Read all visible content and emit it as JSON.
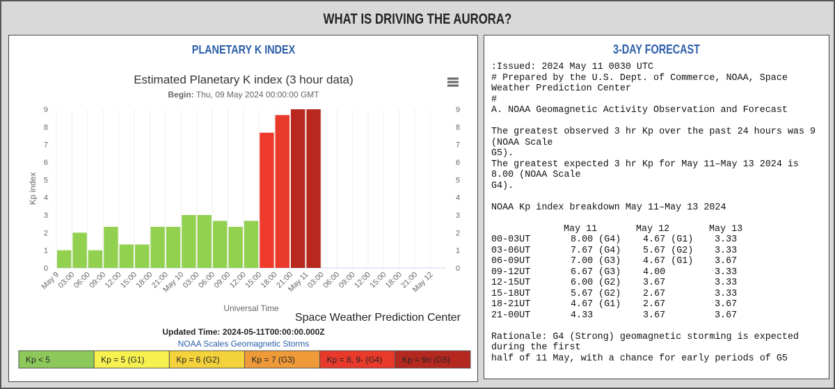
{
  "header": {
    "title": "WHAT IS DRIVING THE AURORA?"
  },
  "left_panel": {
    "title": "PLANETARY K INDEX"
  },
  "chart_data": {
    "type": "bar",
    "title": "Estimated Planetary K index (3 hour data)",
    "subtitle_label": "Begin:",
    "subtitle": "Thu, 09 May 2024 00:00:00 GMT",
    "y_label": "Kp index",
    "x_label": "Universal Time",
    "credit": "Space Weather Prediction Center",
    "categories": [
      "May 9",
      "03:00",
      "06:00",
      "09:00",
      "12:00",
      "15:00",
      "18:00",
      "21:00",
      "May 10",
      "03:00",
      "06:00",
      "09:00",
      "12:00",
      "15:00",
      "18:00",
      "21:00",
      "May 11",
      "03:00",
      "06:00",
      "09:00",
      "12:00",
      "15:00",
      "18:00",
      "21:00",
      "May 12"
    ],
    "values": [
      1,
      2,
      1,
      2.33,
      1.33,
      1.33,
      2.33,
      2.33,
      3,
      3,
      2.67,
      2.33,
      2.67,
      7.67,
      8.67,
      9,
      9,
      null,
      null,
      null,
      null,
      null,
      null,
      null,
      null
    ],
    "colors": [
      "#92d050",
      "#92d050",
      "#92d050",
      "#92d050",
      "#92d050",
      "#92d050",
      "#92d050",
      "#92d050",
      "#92d050",
      "#92d050",
      "#92d050",
      "#92d050",
      "#92d050",
      "#ee3a2b",
      "#ea3a2b",
      "#b8281f",
      "#b8281f",
      null,
      null,
      null,
      null,
      null,
      null,
      null,
      null
    ],
    "ylim": [
      0,
      9
    ],
    "yticks": [
      0,
      1,
      2,
      3,
      4,
      5,
      6,
      7,
      8,
      9
    ],
    "y2lim": [
      0,
      9
    ],
    "y2ticks": [
      0,
      1,
      2,
      3,
      4,
      5,
      6,
      7,
      8,
      9
    ],
    "updated_label": "Updated Time: 2024-05-11T00:00:00.000Z",
    "scales_link": "NOAA Scales Geomagnetic Storms",
    "legend": [
      {
        "label": "Kp < 5",
        "color": "#8dc95a"
      },
      {
        "label": "Kp = 5 (G1)",
        "color": "#f7f150"
      },
      {
        "label": "Kp = 6 (G2)",
        "color": "#f4d23c"
      },
      {
        "label": "Kp = 7 (G3)",
        "color": "#ef9a38"
      },
      {
        "label": "Kp = 8, 9- (G4)",
        "color": "#e8392b"
      },
      {
        "label": "Kp = 9o (G5)",
        "color": "#b5281f"
      }
    ]
  },
  "right_panel": {
    "title": "3-DAY FORECAST",
    "paragraphs": [
      [
        ":Issued: 2024 May 11 0030 UTC",
        "# Prepared by the U.S. Dept. of Commerce, NOAA, Space",
        "Weather Prediction Center",
        "#",
        "A. NOAA Geomagnetic Activity Observation and Forecast"
      ],
      [
        "The greatest observed 3 hr Kp over the past 24 hours was 9",
        "(NOAA Scale",
        "G5).",
        "The greatest expected 3 hr Kp for May 11–May 13 2024 is",
        "8.00 (NOAA Scale",
        "G4)."
      ],
      [
        "NOAA Kp index breakdown May 11–May 13 2024"
      ]
    ],
    "kp_table": {
      "columns": [
        "May 11",
        "May 12",
        "May 13"
      ],
      "rows": [
        [
          "00-03UT",
          "8.00 (G4)",
          "4.67 (G1)",
          "3.33"
        ],
        [
          "03-06UT",
          "7.67 (G4)",
          "5.67 (G2)",
          "3.33"
        ],
        [
          "06-09UT",
          "7.00 (G3)",
          "4.67 (G1)",
          "3.67"
        ],
        [
          "09-12UT",
          "6.67 (G3)",
          "4.00",
          "3.33"
        ],
        [
          "12-15UT",
          "6.00 (G2)",
          "3.67",
          "3.33"
        ],
        [
          "15-18UT",
          "5.67 (G2)",
          "2.67",
          "3.33"
        ],
        [
          "18-21UT",
          "4.67 (G1)",
          "2.67",
          "3.67"
        ],
        [
          "21-00UT",
          "4.33",
          "3.67",
          "3.67"
        ]
      ]
    },
    "rationale": [
      "Rationale: G4 (Strong) geomagnetic storming is expected",
      "during the first",
      "half of 11 May, with a chance for early periods of G5"
    ]
  }
}
